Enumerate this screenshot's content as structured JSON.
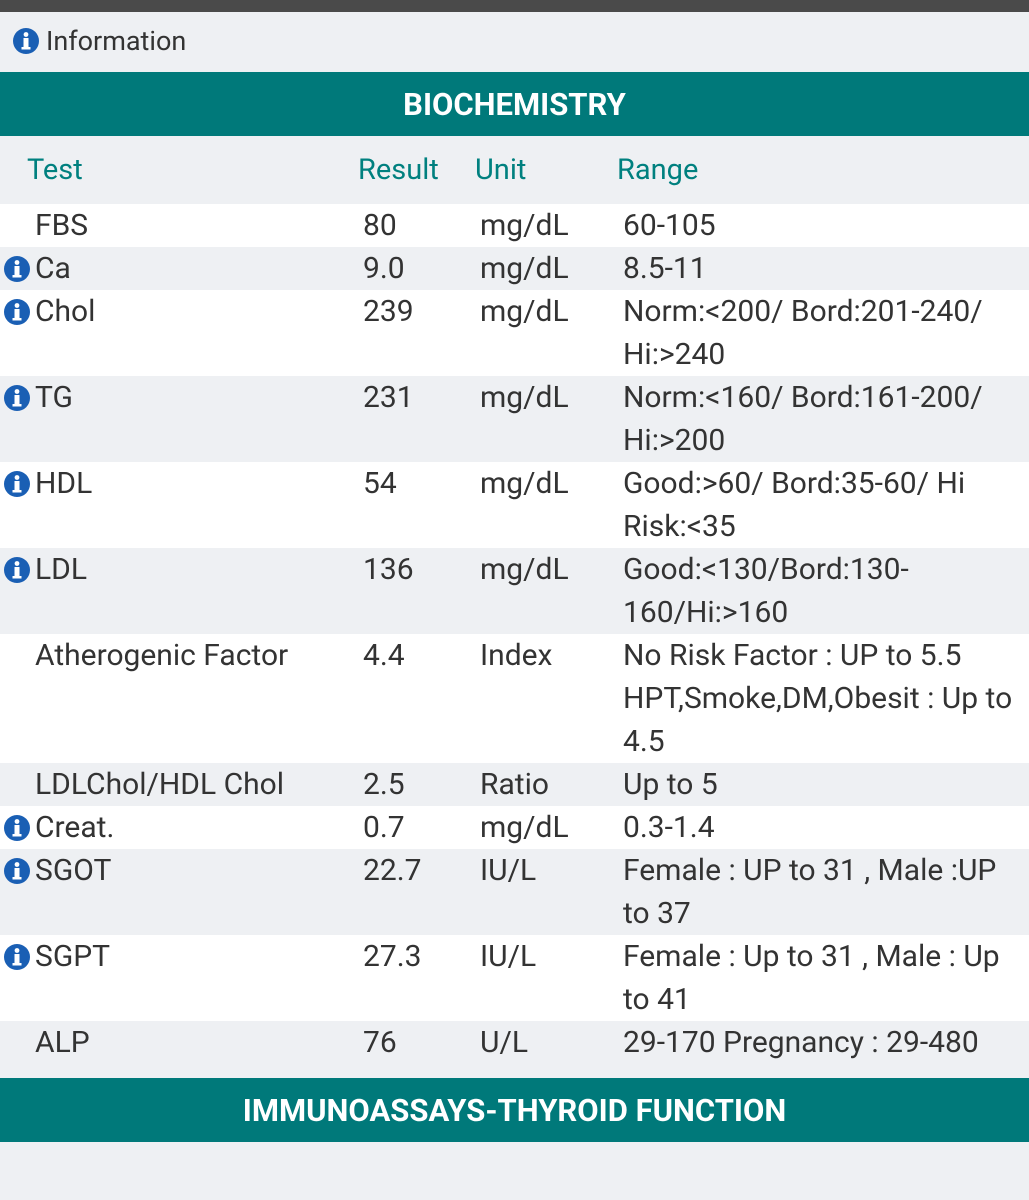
{
  "info_bar": {
    "label": "Information"
  },
  "sections": [
    {
      "title": "BIOCHEMISTRY",
      "columns": [
        "Test",
        "Result",
        "Unit",
        "Range"
      ],
      "rows": [
        {
          "test": "FBS",
          "result": "80",
          "unit": "mg/dL",
          "range": "60-105",
          "info": false
        },
        {
          "test": "Ca",
          "result": "9.0",
          "unit": "mg/dL",
          "range": "8.5-11",
          "info": true
        },
        {
          "test": "Chol",
          "result": "239",
          "unit": "mg/dL",
          "range": "Norm:<200/ Bord:201-240/ Hi:>240",
          "info": true
        },
        {
          "test": "TG",
          "result": "231",
          "unit": "mg/dL",
          "range": "Norm:<160/ Bord:161-200/ Hi:>200",
          "info": true
        },
        {
          "test": "HDL",
          "result": "54",
          "unit": "mg/dL",
          "range": "Good:>60/ Bord:35-60/ Hi Risk:<35",
          "info": true
        },
        {
          "test": "LDL",
          "result": "136",
          "unit": "mg/dL",
          "range": "Good:<130/Bord:130-160/Hi:>160",
          "info": true
        },
        {
          "test": "Atherogenic Factor",
          "result": "4.4",
          "unit": "Index",
          "range": "No Risk Factor : UP to 5.5 HPT,Smoke,DM,Obesit : Up to 4.5",
          "info": false
        },
        {
          "test": "LDLChol/HDL Chol",
          "result": "2.5",
          "unit": "Ratio",
          "range": "Up to 5",
          "info": false
        },
        {
          "test": "Creat.",
          "result": "0.7",
          "unit": "mg/dL",
          "range": "0.3-1.4",
          "info": true
        },
        {
          "test": "SGOT",
          "result": "22.7",
          "unit": "IU/L",
          "range": "Female : UP to 31 , Male :UP to 37",
          "info": true
        },
        {
          "test": "SGPT",
          "result": "27.3",
          "unit": "IU/L",
          "range": "Female : Up to 31 , Male : Up to 41",
          "info": true
        },
        {
          "test": "ALP",
          "result": "76",
          "unit": "U/L",
          "range": "29-170 Pregnancy : 29-480",
          "info": false
        }
      ]
    },
    {
      "title": "IMMUNOASSAYS-THYROID FUNCTION"
    }
  ]
}
